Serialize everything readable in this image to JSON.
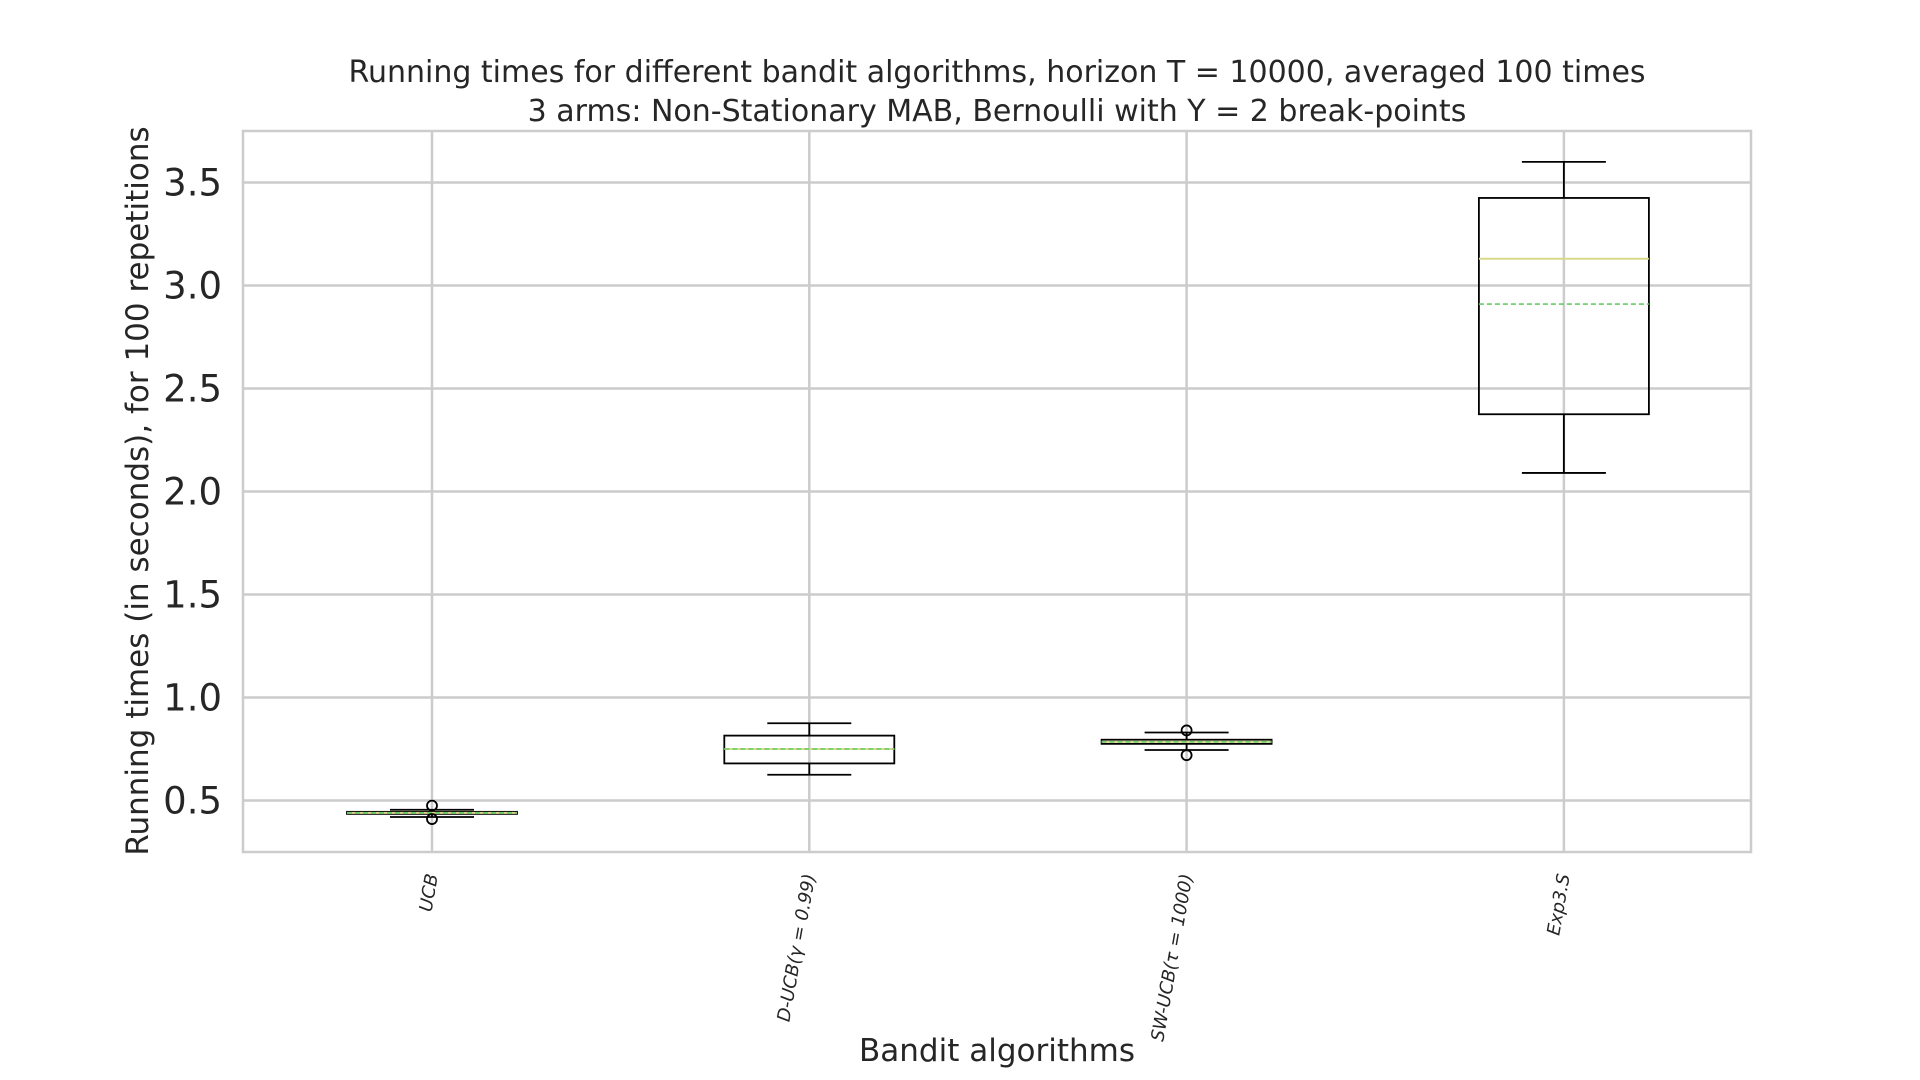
{
  "chart_data": {
    "type": "box",
    "title_line1": "Running times for different bandit algorithms, horizon T = 10000, averaged 100 times",
    "title_line2": "3 arms: Non-Stationary MAB, Bernoulli with Υ = 2 break-points",
    "xlabel": "Bandit algorithms",
    "ylabel": "Running times (in seconds), for 100 repetitions",
    "ylim": [
      0.25,
      3.75
    ],
    "yticks": [
      "0.5",
      "1.0",
      "1.5",
      "2.0",
      "2.5",
      "3.0",
      "3.5"
    ],
    "grid": true,
    "categories": [
      "UCB",
      "D-UCB(γ = 0.99)",
      "SW-UCB(τ = 1000)",
      "Exp3.S"
    ],
    "boxes": [
      {
        "whisker_low": 0.42,
        "q1": 0.435,
        "median": 0.44,
        "mean": 0.44,
        "q3": 0.445,
        "whisker_high": 0.455,
        "outliers": [
          0.41,
          0.475
        ]
      },
      {
        "whisker_low": 0.625,
        "q1": 0.68,
        "median": 0.75,
        "mean": 0.75,
        "q3": 0.815,
        "whisker_high": 0.875,
        "outliers": []
      },
      {
        "whisker_low": 0.745,
        "q1": 0.775,
        "median": 0.785,
        "mean": 0.785,
        "q3": 0.795,
        "whisker_high": 0.83,
        "outliers": [
          0.72,
          0.84
        ]
      },
      {
        "whisker_low": 2.09,
        "q1": 2.375,
        "median": 3.13,
        "mean": 2.91,
        "q3": 3.425,
        "whisker_high": 3.6,
        "outliers": []
      }
    ],
    "colors": {
      "grid": "#cccccc",
      "box": "#000000",
      "median": "#d9d98c",
      "mean": "#66cc66",
      "frame": "#cccccc"
    }
  }
}
